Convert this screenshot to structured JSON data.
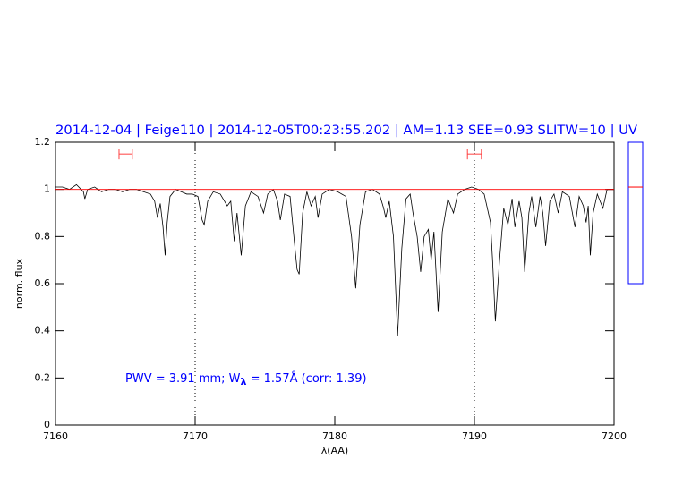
{
  "chart_data": {
    "type": "line",
    "title": "2014-12-04 | Feige110 | 2014-12-05T00:23:55.202 | AM=1.13 SEE=0.93 SLITW=10 | UV",
    "annotation": [
      "PWV = 3.91 mm; W",
      "λ",
      " = 1.57Å (corr: 1.39)"
    ],
    "xlabel": "λ(AA)",
    "ylabel": "norm. flux",
    "xlim": [
      7160,
      7200
    ],
    "xticks": [
      7160,
      7170,
      7180,
      7190,
      7200
    ],
    "ylim": [
      0,
      1.2
    ],
    "yticks": [
      0,
      0.2,
      0.4,
      0.6,
      0.8,
      1,
      1.2
    ],
    "vlines": [
      7170,
      7190
    ],
    "ranges": [
      {
        "x": [
          7164.55,
          7165.5
        ],
        "y": 1.15,
        "color": "#ff4040"
      },
      {
        "x": [
          7189.5,
          7190.5
        ],
        "y": 1.15,
        "color": "#ff4040"
      }
    ],
    "side_indicator": {
      "ylim": [
        0.6,
        1.2
      ],
      "value": 1.01,
      "color": "#0000ff",
      "marker_color": "#ff0000"
    },
    "series": [
      {
        "color": "#000000",
        "x": [
          7160,
          7160.5,
          7161,
          7161.5,
          7162,
          7162.1,
          7162.3,
          7162.8,
          7163.3,
          7163.8,
          7164.3,
          7164.8,
          7165.3,
          7165.8,
          7166.3,
          7166.8,
          7167.1,
          7167.3,
          7167.5,
          7167.7,
          7167.85,
          7168.0,
          7168.2,
          7168.6,
          7169,
          7169.4,
          7169.8,
          7170.2,
          7170.5,
          7170.65,
          7170.9,
          7171.3,
          7171.8,
          7172.1,
          7172.3,
          7172.55,
          7172.8,
          7173.0,
          7173.3,
          7173.6,
          7174.0,
          7174.5,
          7174.9,
          7175.2,
          7175.6,
          7175.9,
          7176.1,
          7176.4,
          7176.8,
          7177.1,
          7177.3,
          7177.45,
          7177.7,
          7178.0,
          7178.3,
          7178.6,
          7178.8,
          7179.1,
          7179.6,
          7180.2,
          7180.8,
          7181.2,
          7181.5,
          7181.8,
          7182.2,
          7182.7,
          7183.2,
          7183.5,
          7183.65,
          7183.9,
          7184.2,
          7184.5,
          7184.8,
          7185.1,
          7185.4,
          7185.6,
          7185.9,
          7186.15,
          7186.4,
          7186.7,
          7186.9,
          7187.1,
          7187.4,
          7187.7,
          7188.1,
          7188.5,
          7188.8,
          7189.3,
          7189.8,
          7190.3,
          7190.7,
          7191.0,
          7191.15,
          7191.3,
          7191.5,
          7191.8,
          7192.1,
          7192.4,
          7192.7,
          7192.9,
          7193.2,
          7193.4,
          7193.6,
          7193.9,
          7194.1,
          7194.4,
          7194.7,
          7194.9,
          7195.1,
          7195.4,
          7195.7,
          7196.0,
          7196.3,
          7196.8,
          7197.2,
          7197.5,
          7197.8,
          7198.0,
          7198.15,
          7198.3,
          7198.5,
          7198.8,
          7199.2,
          7199.5,
          7200
        ],
        "values": [
          1.01,
          1.01,
          1.0,
          1.02,
          0.99,
          0.96,
          1.0,
          1.01,
          0.99,
          1.0,
          1.0,
          0.99,
          1.0,
          1.0,
          0.99,
          0.98,
          0.95,
          0.88,
          0.94,
          0.84,
          0.72,
          0.86,
          0.97,
          1.0,
          0.99,
          0.98,
          0.98,
          0.97,
          0.87,
          0.85,
          0.95,
          0.99,
          0.98,
          0.95,
          0.93,
          0.95,
          0.78,
          0.9,
          0.72,
          0.93,
          0.99,
          0.97,
          0.9,
          0.98,
          1.0,
          0.95,
          0.87,
          0.98,
          0.97,
          0.78,
          0.66,
          0.64,
          0.9,
          0.99,
          0.93,
          0.97,
          0.88,
          0.98,
          1.0,
          0.99,
          0.97,
          0.8,
          0.58,
          0.85,
          0.99,
          1.0,
          0.98,
          0.92,
          0.88,
          0.95,
          0.8,
          0.38,
          0.75,
          0.96,
          0.98,
          0.9,
          0.8,
          0.65,
          0.8,
          0.83,
          0.7,
          0.82,
          0.48,
          0.82,
          0.96,
          0.9,
          0.98,
          1.0,
          1.01,
          1.0,
          0.98,
          0.9,
          0.86,
          0.7,
          0.44,
          0.7,
          0.92,
          0.85,
          0.96,
          0.84,
          0.95,
          0.88,
          0.65,
          0.9,
          0.97,
          0.84,
          0.97,
          0.9,
          0.76,
          0.95,
          0.98,
          0.9,
          0.99,
          0.97,
          0.84,
          0.97,
          0.93,
          0.86,
          0.93,
          0.72,
          0.9,
          0.98,
          0.92,
          1.0,
          1.0
        ]
      },
      {
        "color": "#ff0000",
        "x": [
          7160,
          7200
        ],
        "values": [
          1,
          1
        ]
      }
    ]
  }
}
